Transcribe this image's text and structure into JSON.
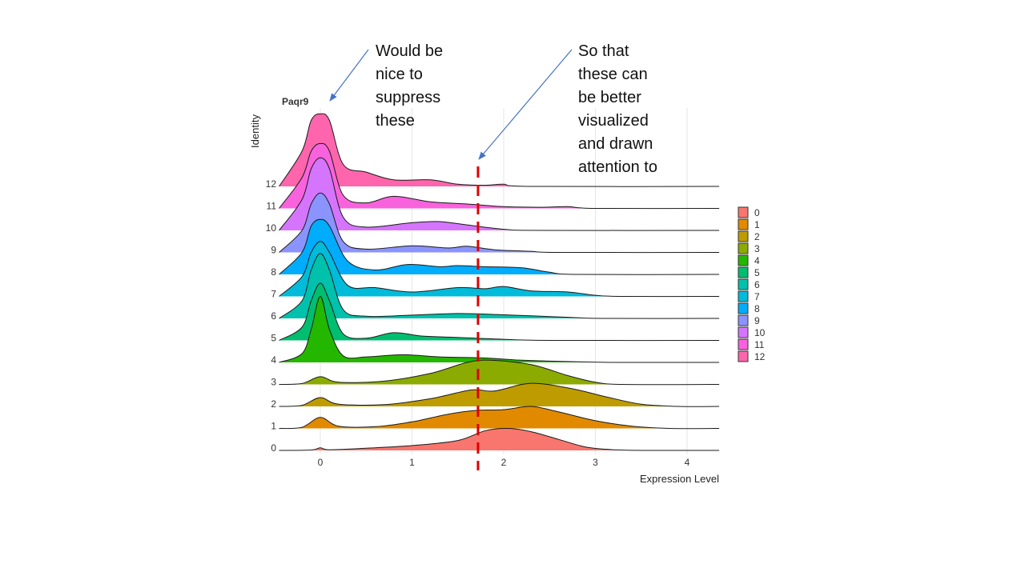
{
  "annotations": {
    "left": "Would be\nnice to\nsuppress\nthese",
    "right": "So that\nthese can\nbe better\nvisualized\nand drawn\nattention to"
  },
  "chart_data": {
    "type": "ridgeline",
    "title": "Paqr9",
    "xlabel": "Expression Level",
    "ylabel": "Identity",
    "xlim": [
      -0.45,
      4.35
    ],
    "xticks": [
      0,
      1,
      2,
      3,
      4
    ],
    "grid": "vertical",
    "legend": "right",
    "threshold_line": {
      "x": 1.72,
      "style": "dashed",
      "color": "#e00000"
    },
    "series": [
      {
        "name": "0",
        "color": "#F8766D",
        "points": [
          [
            -0.45,
            0
          ],
          [
            -0.1,
            0.02
          ],
          [
            0,
            0.12
          ],
          [
            0.1,
            0.03
          ],
          [
            0.5,
            0.1
          ],
          [
            1.0,
            0.22
          ],
          [
            1.5,
            0.45
          ],
          [
            1.8,
            0.9
          ],
          [
            2.05,
            1.0
          ],
          [
            2.3,
            0.85
          ],
          [
            2.6,
            0.5
          ],
          [
            2.9,
            0.15
          ],
          [
            3.2,
            0.03
          ],
          [
            3.6,
            0
          ],
          [
            4.35,
            0
          ]
        ]
      },
      {
        "name": "1",
        "color": "#E18A00",
        "points": [
          [
            -0.45,
            0
          ],
          [
            -0.2,
            0.05
          ],
          [
            0,
            0.5
          ],
          [
            0.2,
            0.1
          ],
          [
            0.6,
            0.08
          ],
          [
            1.0,
            0.3
          ],
          [
            1.4,
            0.65
          ],
          [
            1.7,
            0.82
          ],
          [
            2.0,
            0.85
          ],
          [
            2.3,
            1.0
          ],
          [
            2.6,
            0.75
          ],
          [
            3.0,
            0.35
          ],
          [
            3.4,
            0.1
          ],
          [
            3.8,
            0
          ],
          [
            4.35,
            0
          ]
        ]
      },
      {
        "name": "2",
        "color": "#BE9C00",
        "points": [
          [
            -0.45,
            0
          ],
          [
            -0.2,
            0.05
          ],
          [
            0,
            0.4
          ],
          [
            0.2,
            0.1
          ],
          [
            0.7,
            0.08
          ],
          [
            1.2,
            0.35
          ],
          [
            1.65,
            0.75
          ],
          [
            1.9,
            0.7
          ],
          [
            2.3,
            1.05
          ],
          [
            2.75,
            0.8
          ],
          [
            3.1,
            0.45
          ],
          [
            3.5,
            0.1
          ],
          [
            3.9,
            0
          ],
          [
            4.35,
            0
          ]
        ]
      },
      {
        "name": "3",
        "color": "#8CAB00",
        "points": [
          [
            -0.45,
            0
          ],
          [
            -0.2,
            0.04
          ],
          [
            0,
            0.35
          ],
          [
            0.2,
            0.1
          ],
          [
            0.7,
            0.15
          ],
          [
            1.2,
            0.5
          ],
          [
            1.6,
            1.0
          ],
          [
            1.85,
            1.1
          ],
          [
            2.3,
            0.9
          ],
          [
            2.7,
            0.4
          ],
          [
            3.0,
            0.1
          ],
          [
            3.3,
            0
          ],
          [
            4.35,
            0
          ]
        ]
      },
      {
        "name": "4",
        "color": "#24B700",
        "points": [
          [
            -0.45,
            0
          ],
          [
            -0.2,
            0.4
          ],
          [
            -0.1,
            1.5
          ],
          [
            0,
            3.0
          ],
          [
            0.1,
            1.5
          ],
          [
            0.25,
            0.3
          ],
          [
            0.5,
            0.25
          ],
          [
            0.9,
            0.35
          ],
          [
            1.3,
            0.25
          ],
          [
            1.8,
            0.2
          ],
          [
            2.2,
            0.1
          ],
          [
            2.8,
            0.03
          ],
          [
            3.2,
            0
          ],
          [
            4.35,
            0
          ]
        ]
      },
      {
        "name": "5",
        "color": "#00BE70",
        "points": [
          [
            -0.45,
            0
          ],
          [
            -0.2,
            0.6
          ],
          [
            -0.1,
            1.8
          ],
          [
            0,
            2.6
          ],
          [
            0.1,
            1.8
          ],
          [
            0.25,
            0.3
          ],
          [
            0.5,
            0.1
          ],
          [
            0.8,
            0.35
          ],
          [
            1.1,
            0.2
          ],
          [
            1.4,
            0.15
          ],
          [
            1.7,
            0.1
          ],
          [
            2.0,
            0.05
          ],
          [
            2.5,
            0
          ],
          [
            4.35,
            0
          ]
        ]
      },
      {
        "name": "6",
        "color": "#00C1AB",
        "points": [
          [
            -0.45,
            0
          ],
          [
            -0.2,
            0.8
          ],
          [
            -0.1,
            2.2
          ],
          [
            0,
            2.95
          ],
          [
            0.1,
            2.2
          ],
          [
            0.25,
            0.4
          ],
          [
            0.5,
            0.1
          ],
          [
            1.0,
            0.15
          ],
          [
            1.5,
            0.22
          ],
          [
            1.9,
            0.18
          ],
          [
            2.3,
            0.12
          ],
          [
            2.7,
            0.05
          ],
          [
            3.1,
            0
          ],
          [
            4.35,
            0
          ]
        ]
      },
      {
        "name": "7",
        "color": "#00BBDA",
        "points": [
          [
            -0.45,
            0
          ],
          [
            -0.2,
            0.9
          ],
          [
            -0.1,
            2.0
          ],
          [
            0,
            2.5
          ],
          [
            0.1,
            2.0
          ],
          [
            0.3,
            0.5
          ],
          [
            0.6,
            0.4
          ],
          [
            1.0,
            0.2
          ],
          [
            1.5,
            0.4
          ],
          [
            1.8,
            0.35
          ],
          [
            2.0,
            0.45
          ],
          [
            2.3,
            0.25
          ],
          [
            2.7,
            0.2
          ],
          [
            3.0,
            0.05
          ],
          [
            3.3,
            0
          ],
          [
            4.35,
            0
          ]
        ]
      },
      {
        "name": "8",
        "color": "#00ACFC",
        "points": [
          [
            -0.45,
            0
          ],
          [
            -0.2,
            1.0
          ],
          [
            -0.1,
            2.2
          ],
          [
            0,
            2.5
          ],
          [
            0.1,
            2.2
          ],
          [
            0.3,
            0.6
          ],
          [
            0.6,
            0.2
          ],
          [
            0.95,
            0.45
          ],
          [
            1.3,
            0.35
          ],
          [
            1.5,
            0.4
          ],
          [
            1.8,
            0.35
          ],
          [
            2.2,
            0.3
          ],
          [
            2.5,
            0.1
          ],
          [
            2.8,
            0
          ],
          [
            4.35,
            0
          ]
        ]
      },
      {
        "name": "9",
        "color": "#8B93FF",
        "points": [
          [
            -0.45,
            0
          ],
          [
            -0.2,
            1.0
          ],
          [
            -0.1,
            2.2
          ],
          [
            0,
            2.7
          ],
          [
            0.1,
            2.2
          ],
          [
            0.25,
            0.5
          ],
          [
            0.5,
            0.15
          ],
          [
            1.0,
            0.3
          ],
          [
            1.4,
            0.2
          ],
          [
            1.6,
            0.28
          ],
          [
            1.9,
            0.12
          ],
          [
            2.3,
            0.05
          ],
          [
            2.6,
            0
          ],
          [
            4.35,
            0
          ]
        ]
      },
      {
        "name": "10",
        "color": "#D575FE",
        "points": [
          [
            -0.45,
            0
          ],
          [
            -0.2,
            1.4
          ],
          [
            -0.1,
            2.8
          ],
          [
            0,
            3.3
          ],
          [
            0.1,
            2.8
          ],
          [
            0.25,
            0.6
          ],
          [
            0.5,
            0.15
          ],
          [
            1.0,
            0.35
          ],
          [
            1.3,
            0.4
          ],
          [
            1.6,
            0.25
          ],
          [
            2.0,
            0.05
          ],
          [
            2.4,
            0
          ],
          [
            4.35,
            0
          ]
        ]
      },
      {
        "name": "11",
        "color": "#F962DD",
        "points": [
          [
            -0.45,
            0
          ],
          [
            -0.2,
            1.4
          ],
          [
            -0.1,
            2.6
          ],
          [
            0,
            2.95
          ],
          [
            0.1,
            2.6
          ],
          [
            0.25,
            0.6
          ],
          [
            0.5,
            0.25
          ],
          [
            0.8,
            0.55
          ],
          [
            1.2,
            0.3
          ],
          [
            1.6,
            0.2
          ],
          [
            2.0,
            0.08
          ],
          [
            2.4,
            0.05
          ],
          [
            2.7,
            0.08
          ],
          [
            3.0,
            0
          ],
          [
            4.35,
            0
          ]
        ]
      },
      {
        "name": "12",
        "color": "#FF65AC",
        "points": [
          [
            -0.45,
            0
          ],
          [
            -0.2,
            1.6
          ],
          [
            -0.1,
            3.0
          ],
          [
            0,
            3.3
          ],
          [
            0.1,
            3.0
          ],
          [
            0.25,
            1.0
          ],
          [
            0.5,
            0.65
          ],
          [
            0.8,
            0.3
          ],
          [
            1.2,
            0.3
          ],
          [
            1.5,
            0.1
          ],
          [
            1.8,
            0.05
          ],
          [
            2.0,
            0.1
          ],
          [
            2.3,
            0
          ],
          [
            4.35,
            0
          ]
        ]
      }
    ]
  }
}
